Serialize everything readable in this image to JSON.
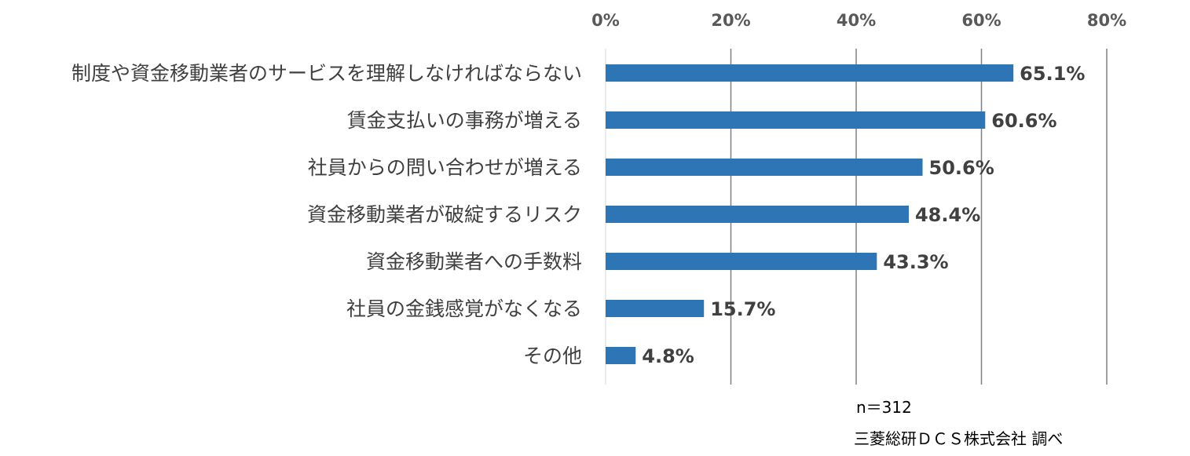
{
  "chart_data": {
    "type": "bar",
    "orientation": "horizontal",
    "categories": [
      "制度や資金移動業者のサービスを理解しなければならない",
      "賃金支払いの事務が増える",
      "社員からの問い合わせが増える",
      "資金移動業者が破綻するリスク",
      "資金移動業者への手数料",
      "社員の金銭感覚がなくなる",
      "その他"
    ],
    "values": [
      65.1,
      60.6,
      50.6,
      48.4,
      43.3,
      15.7,
      4.8
    ],
    "value_labels": [
      "65.1%",
      "60.6%",
      "50.6%",
      "48.4%",
      "43.3%",
      "15.7%",
      "4.8%"
    ],
    "xlim": [
      0,
      80
    ],
    "xticks": [
      0,
      20,
      40,
      60,
      80
    ],
    "xtick_labels": [
      "0%",
      "20%",
      "40%",
      "60%",
      "80%"
    ],
    "x_axis_position": "top",
    "grid": true,
    "bar_color": "#2E75B6",
    "grid_color": "#808080"
  },
  "notes": {
    "sample_size": "n＝312",
    "source": "三菱総研ＤＣＳ株式会社 調べ"
  }
}
